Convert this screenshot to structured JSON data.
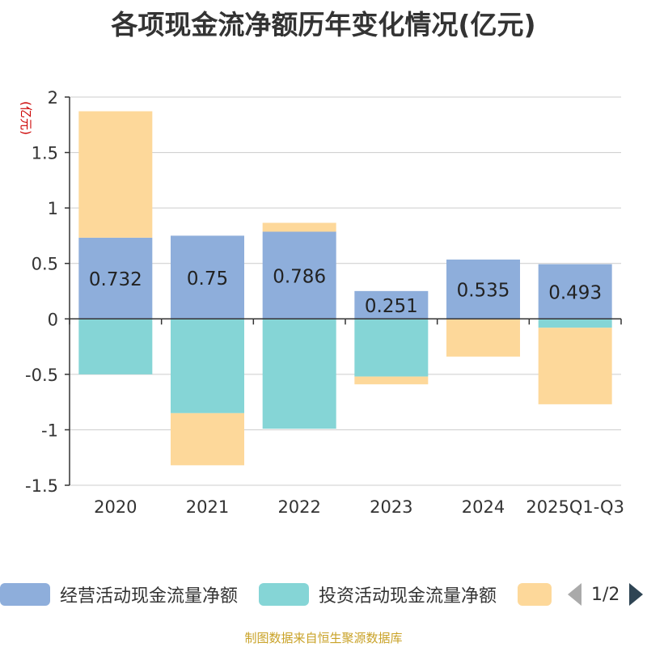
{
  "chart_data": {
    "type": "bar",
    "stacked": true,
    "title": "各项现金流净额历年变化情况(亿元)",
    "ylabel": "(亿元)",
    "xlabel": "",
    "ylim": [
      -1.5,
      2
    ],
    "yticks": [
      2,
      1.5,
      1,
      0.5,
      0,
      -0.5,
      -1,
      -1.5
    ],
    "ytick_labels": [
      "2",
      "1.5",
      "1",
      "0.5",
      "0",
      "-0.5",
      "-1",
      "-1.5"
    ],
    "categories": [
      "2020",
      "2021",
      "2022",
      "2023",
      "2024",
      "2025Q1-Q3"
    ],
    "grid": true,
    "series": [
      {
        "name": "经营活动现金流量净额",
        "color": "#8eaedb",
        "values": [
          0.732,
          0.75,
          0.786,
          0.251,
          0.535,
          0.493
        ],
        "labels": [
          "0.732",
          "0.75",
          "0.786",
          "0.251",
          "0.535",
          "0.493"
        ]
      },
      {
        "name": "投资活动现金流量净额",
        "color": "#85d5d6",
        "values": [
          -0.5,
          -0.85,
          -0.99,
          -0.52,
          0,
          -0.08
        ]
      },
      {
        "name": "",
        "color": "#fdd89a",
        "values": [
          1.14,
          -0.47,
          0.08,
          -0.07,
          -0.34,
          -0.69
        ]
      }
    ]
  },
  "legend": {
    "items": [
      {
        "label": "经营活动现金流量净额",
        "color": "#8eaedb"
      },
      {
        "label": "投资活动现金流量净额",
        "color": "#85d5d6"
      },
      {
        "label": "",
        "color": "#fdd89a"
      }
    ],
    "page": "1/2"
  },
  "source": "制图数据来自恒生聚源数据库"
}
